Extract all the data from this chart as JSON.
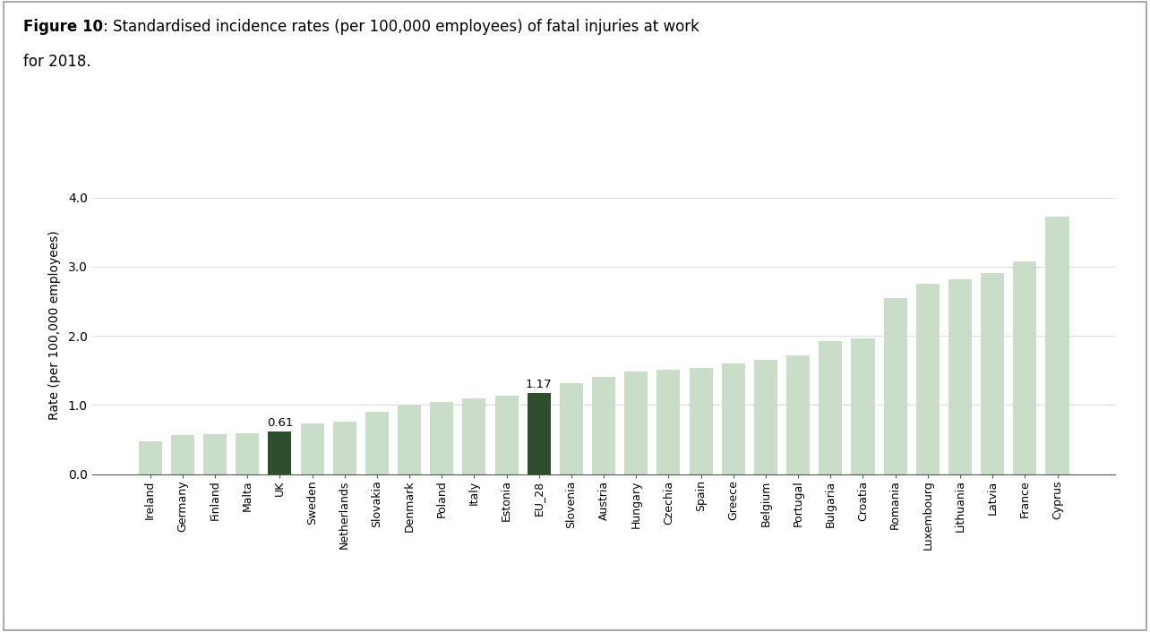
{
  "categories": [
    "Ireland",
    "Germany",
    "Finland",
    "Malta",
    "UK",
    "Sweden",
    "Netherlands",
    "Slovakia",
    "Denmark",
    "Poland",
    "Italy",
    "Estonia",
    "EU_28",
    "Slovenia",
    "Austria",
    "Hungary",
    "Czechia",
    "Spain",
    "Greece",
    "Belgium",
    "Portugal",
    "Bulgaria",
    "Croatia",
    "Romania",
    "Luxembourg",
    "Lithuania",
    "Latvia",
    "France",
    "Cyprus"
  ],
  "values": [
    0.47,
    0.57,
    0.58,
    0.59,
    0.61,
    0.73,
    0.76,
    0.9,
    1.01,
    1.04,
    1.1,
    1.13,
    1.17,
    1.32,
    1.41,
    1.48,
    1.51,
    1.54,
    1.6,
    1.65,
    1.72,
    1.93,
    1.96,
    2.55,
    2.75,
    2.82,
    2.91,
    3.08,
    3.73
  ],
  "highlight_indices": [
    4,
    12
  ],
  "highlight_labels": [
    "0.61",
    "1.17"
  ],
  "bar_color_normal": "#c9ddc9",
  "bar_color_highlight": "#2e4e2e",
  "title_bold_part": "Figure 10",
  "title_normal_part1": ": Standardised incidence rates (per 100,000 employees) of fatal injuries at work",
  "title_normal_part2": "for 2018.",
  "ylabel": "Rate (per 100,000 employees)",
  "ylim": [
    0,
    4.3
  ],
  "yticks": [
    0.0,
    1.0,
    2.0,
    3.0,
    4.0
  ],
  "background_color": "#ffffff",
  "border_color": "#999999",
  "title_fontsize": 12,
  "tick_fontsize": 9,
  "label_fontsize": 9.5,
  "ylabel_fontsize": 10
}
